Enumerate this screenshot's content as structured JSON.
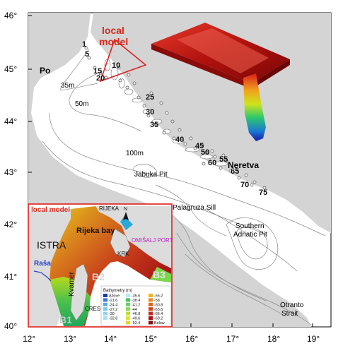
{
  "lat_ticks": [
    "46°",
    "45°",
    "44°",
    "43°",
    "42°",
    "41°",
    "40°"
  ],
  "lon_ticks": [
    "12°",
    "13°",
    "14°",
    "15°",
    "16°",
    "17°",
    "18°",
    "19°"
  ],
  "station_labels": [
    "1",
    "5",
    "10",
    "15",
    "20",
    "25",
    "30",
    "35",
    "40",
    "45",
    "50",
    "55",
    "60",
    "65",
    "70",
    "75"
  ],
  "depth_labels": [
    "35m",
    "50m",
    "100m"
  ],
  "place_labels": {
    "po": "Po",
    "neretva": "Neretva",
    "jabuka": "Jabuka Pit",
    "palagruza": "Palagruza Sill",
    "southern_line1": "Southern",
    "southern_line2": "Adriatic Pit",
    "otranto_line1": "Otranto",
    "otranto_line2": "Strait"
  },
  "local_model_label": {
    "line1": "local",
    "line2": "model"
  },
  "inset": {
    "title": "local model",
    "rijeka": "RIJEKA",
    "north": "N",
    "istra": "ISTRA",
    "rijeka_bay": "Rijeka bay",
    "omisalj_port": "OMIŠALJ PORT",
    "krk": "KRK",
    "rasa": "Raša",
    "kvarner": "Kvarner",
    "cres": "CRES",
    "b1": "B1",
    "b2": "B2",
    "b3": "B3",
    "legend_title": "Bathymetry (m)",
    "legend_col1": [
      "Above",
      "-21.6",
      "-24.4",
      "-27.2",
      "-30",
      "-32.8"
    ],
    "legend_col2": [
      "-35.6",
      "-38.4",
      "-41.2",
      "-44",
      "-46.8",
      "-49.6",
      "-52.4"
    ],
    "legend_col3": [
      "-55.2",
      "-58",
      "-60.8",
      "-63.6",
      "-66.4",
      "-69.2",
      "Below"
    ]
  },
  "colors": {
    "sea": "#ffffff",
    "land": "#d4d4d4",
    "frame_red": "#e01b1b",
    "label_red": "#d62a1e",
    "magenta": "#c21fc6",
    "rasa_blue": "#2a3ec4"
  }
}
